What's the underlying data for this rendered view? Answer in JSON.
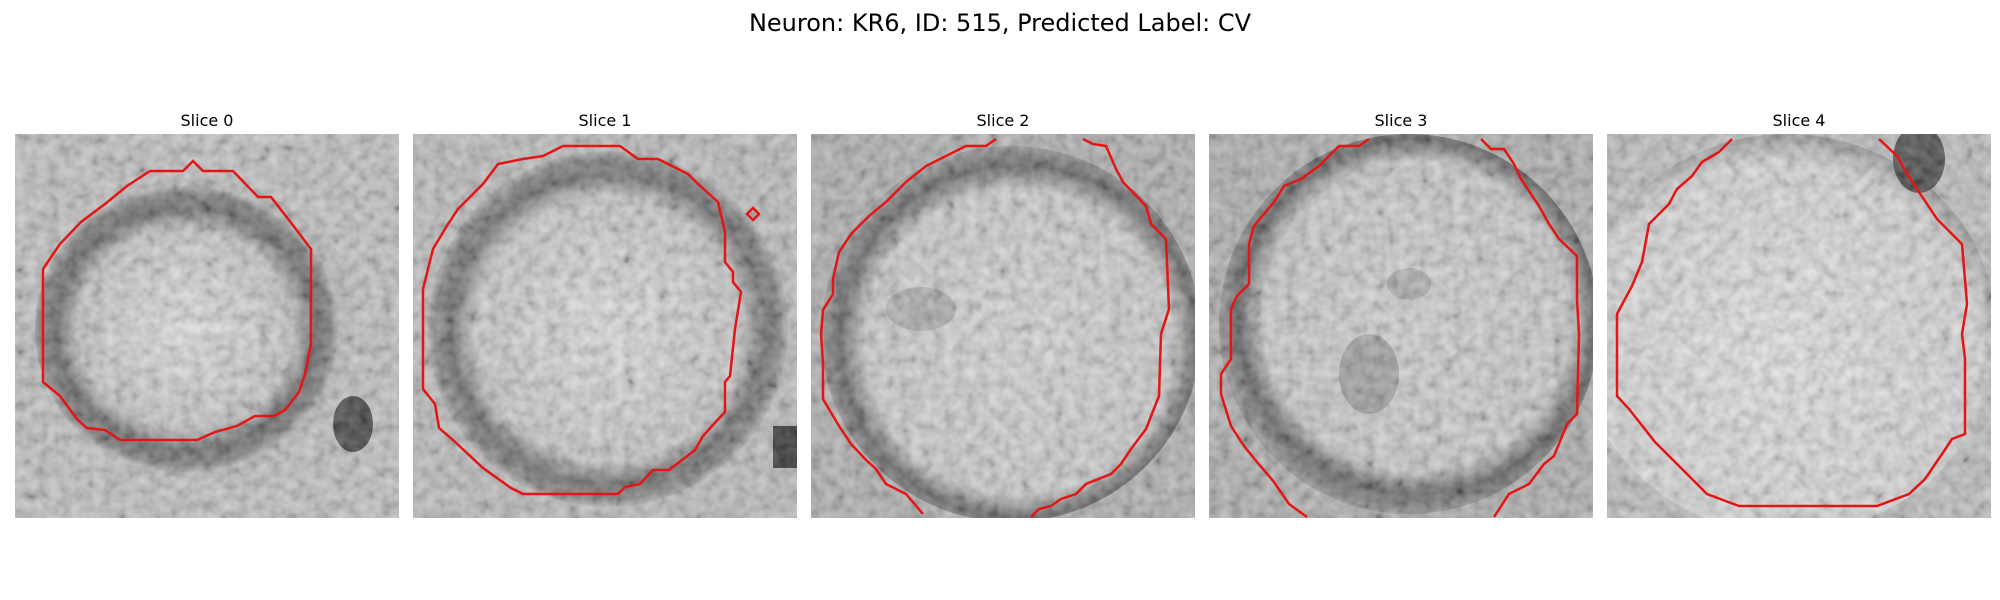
{
  "figure": {
    "title": "Neuron: KR6, ID: 515, Predicted Label: CV"
  },
  "panels": [
    {
      "title": "Slice 0"
    },
    {
      "title": "Slice 1"
    },
    {
      "title": "Slice 2"
    },
    {
      "title": "Slice 3"
    },
    {
      "title": "Slice 4"
    }
  ],
  "colors": {
    "contour": "#e61414",
    "background": "#ffffff",
    "text": "#000000"
  }
}
